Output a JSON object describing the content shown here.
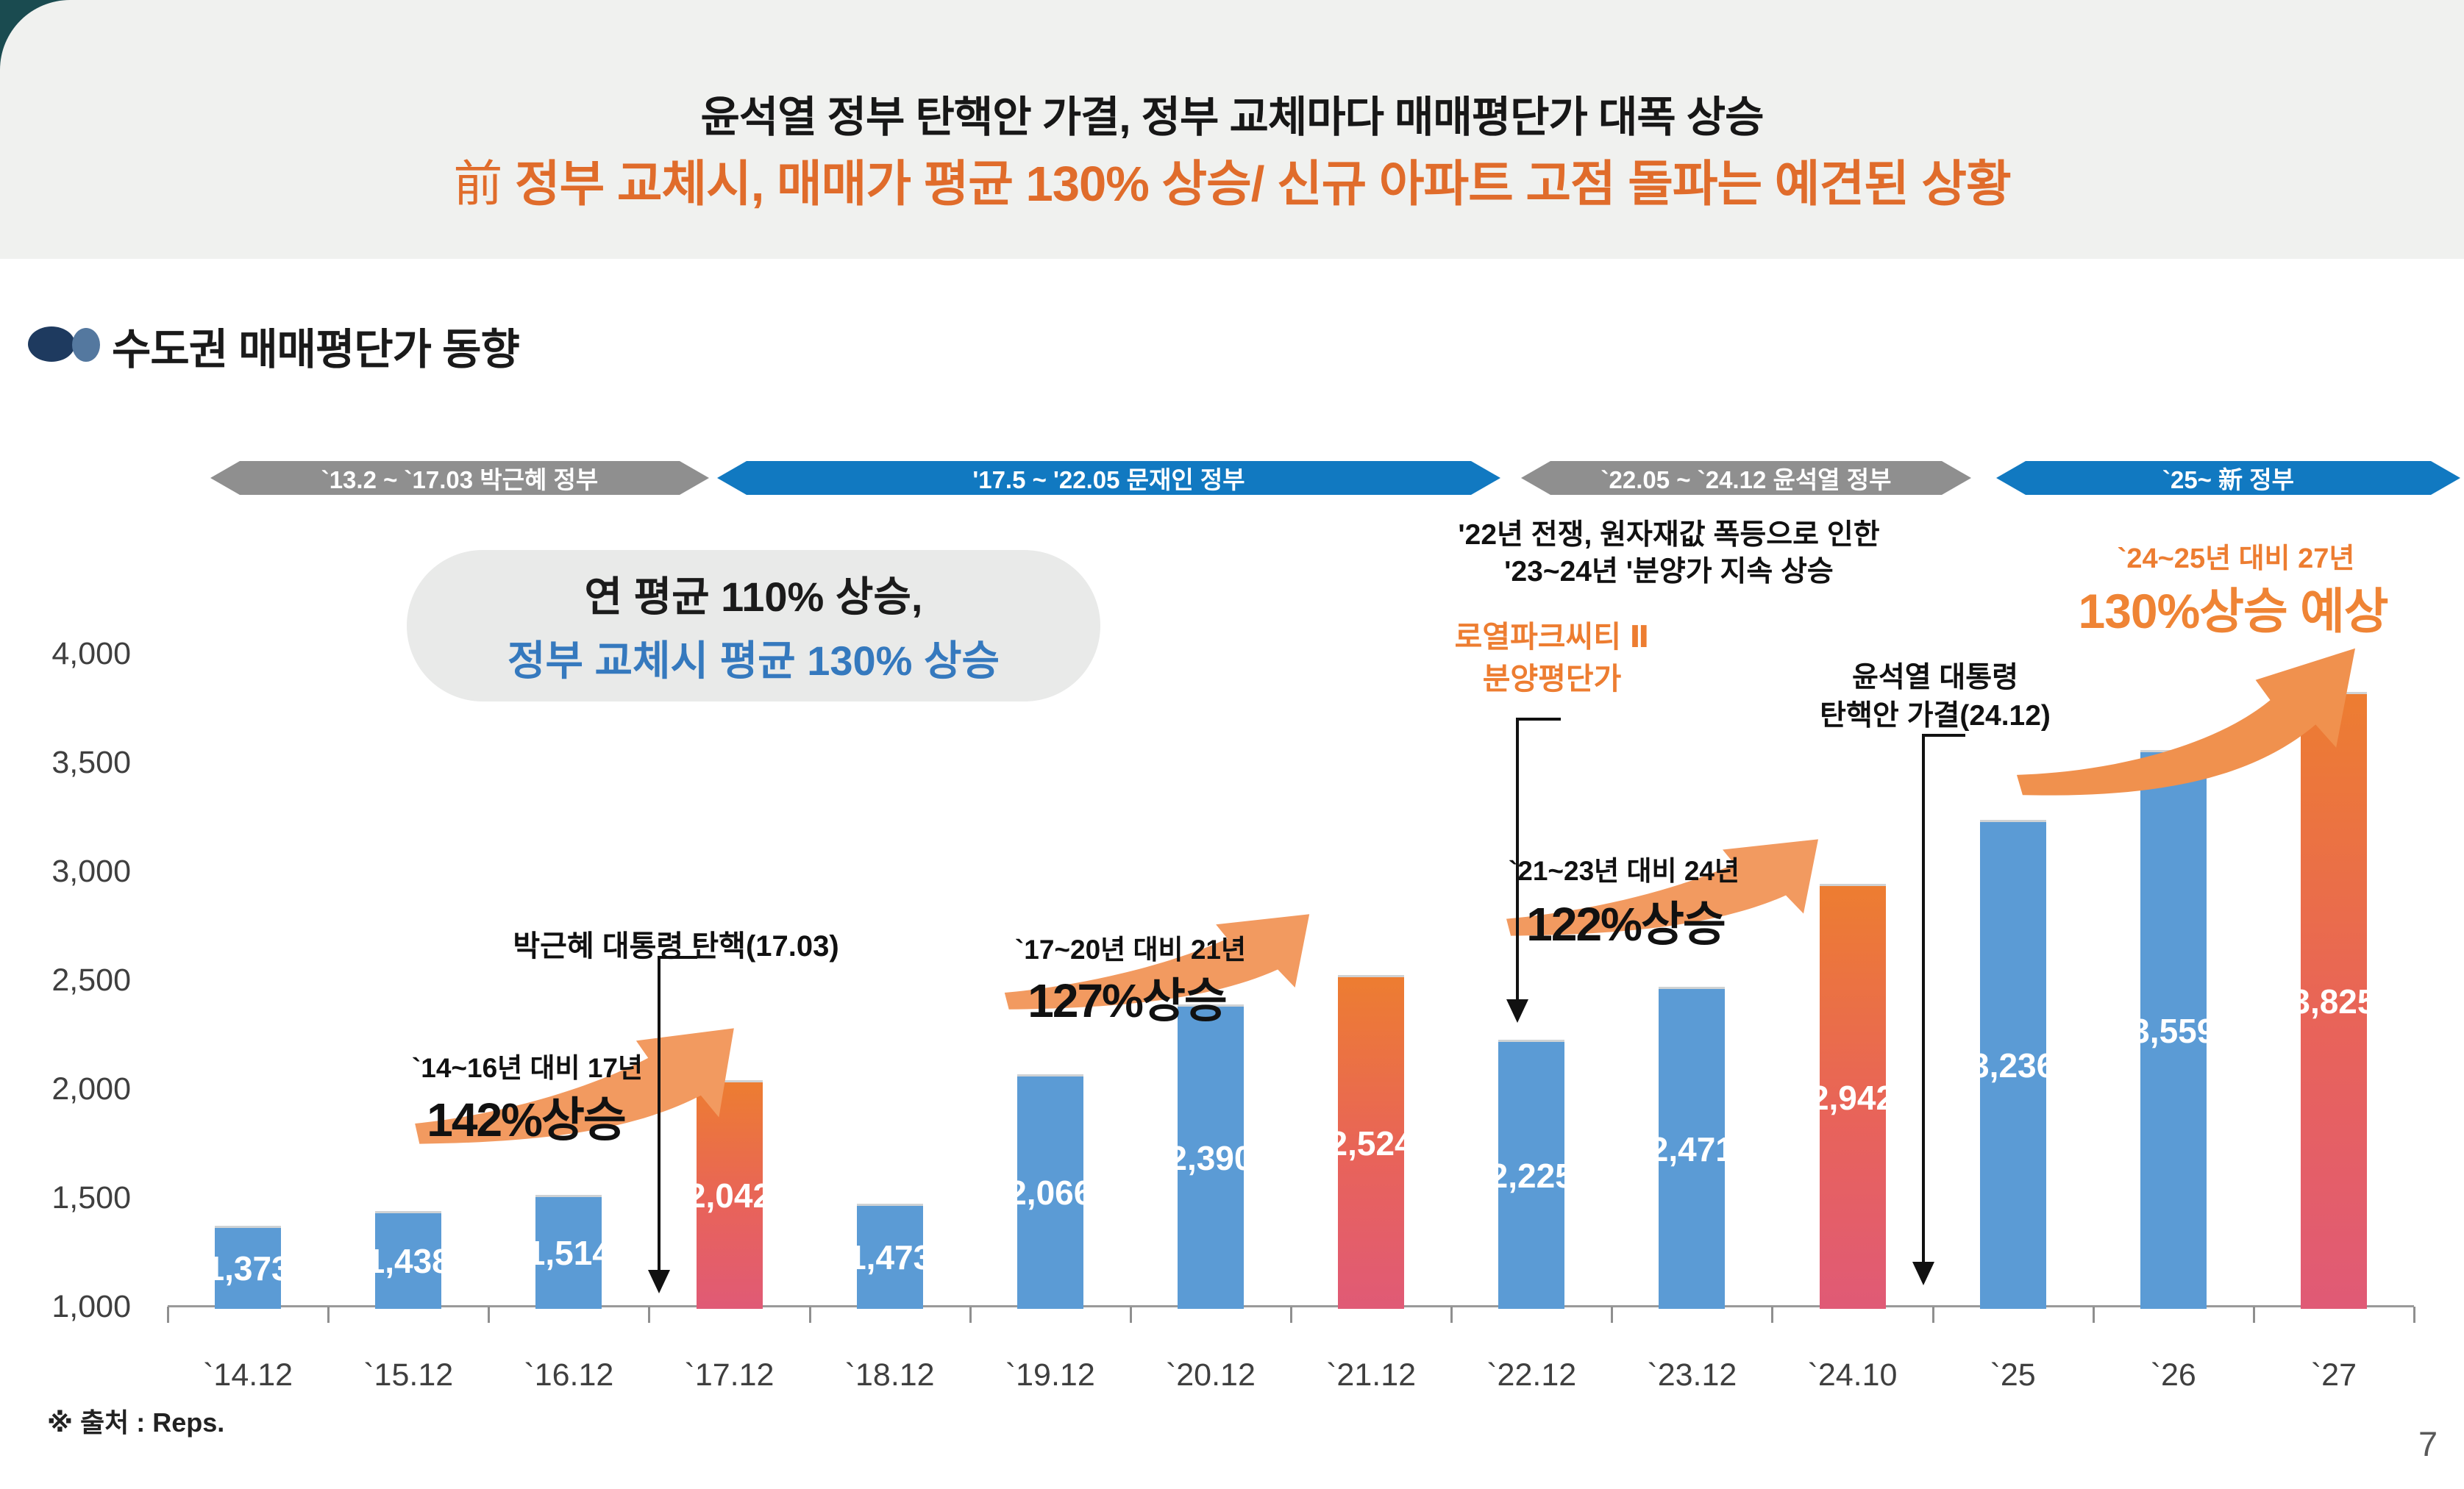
{
  "header": {
    "line1": "윤석열 정부 탄핵안 가결, 정부 교체마다 매매평단가 대폭 상승",
    "line2_hanja": "前",
    "line2_rest": " 정부 교체시, 매매가 평균 130% 상승/ 신규 아파트 고점 돌파는 예견된 상황"
  },
  "section": {
    "title": "수도권 매매평단가 동향"
  },
  "bands": [
    {
      "label": "`13.2 ~ `17.03 박근혜 정부",
      "style": "gray"
    },
    {
      "label": "'17.5 ~ '22.05 문재인 정부",
      "style": "blue"
    },
    {
      "label": "`22.05 ~ `24.12 윤석열 정부",
      "style": "gray"
    },
    {
      "label": "`25~ 新 정부",
      "style": "blue"
    }
  ],
  "callout": {
    "line1": "연 평균 110% 상승,",
    "line2": "정부 교체시 평균 130% 상승"
  },
  "annotations": {
    "park_impeach": "박근혜 대통령 탄핵(17.03)",
    "rise142": {
      "caption": "`14~16년 대비 17년",
      "value": "142%상승"
    },
    "rise127": {
      "caption": "`17~20년 대비 21년",
      "value": "127%상승"
    },
    "rise122": {
      "caption": "`21~23년 대비 24년",
      "value": "122%상승"
    },
    "war": {
      "line1": "'22년 전쟁, 원자재값 폭등으로 인한",
      "line2": "'23~24년 '분양가 지속 상승"
    },
    "royal": {
      "line1": "로열파크씨티 Ⅱ",
      "line2": "분양평단가"
    },
    "yoon": {
      "line1": "윤석열 대통령",
      "line2": "탄핵안 가결(24.12)"
    },
    "forecast": {
      "caption": "`24~25년 대비 27년",
      "value": "130%상승 예상"
    }
  },
  "footer": {
    "source": "※ 출처 : Reps.",
    "page": "7"
  },
  "colors": {
    "band_gray": "#8F8F8F",
    "band_blue": "#1179C1",
    "bar_blue": "#5B9BD5",
    "bar_gradient_top": "#ED7D31",
    "bar_gradient_mid": "#E8635A",
    "bar_gradient_bottom": "#E05A76",
    "accent_orange": "#E06C2B",
    "callout_blue": "#3579BE"
  },
  "chart_data": {
    "type": "bar",
    "title": "수도권 매매평단가 동향",
    "xlabel": "",
    "ylabel": "",
    "grid": false,
    "legend": false,
    "ylim": [
      1000,
      4000
    ],
    "y_ticks": [
      {
        "value": 4000,
        "label": "4,000"
      },
      {
        "value": 3500,
        "label": "3,500"
      },
      {
        "value": 3000,
        "label": "3,000"
      },
      {
        "value": 2500,
        "label": "2,500"
      },
      {
        "value": 2000,
        "label": "2,000"
      },
      {
        "value": 1500,
        "label": "1,500"
      },
      {
        "value": 1000,
        "label": "1,000"
      }
    ],
    "categories": [
      "`14.12",
      "`15.12",
      "`16.12",
      "`17.12",
      "`18.12",
      "`19.12",
      "`20.12",
      "`21.12",
      "`22.12",
      "`23.12",
      "`24.10",
      "`25",
      "`26",
      "`27"
    ],
    "values": [
      1373,
      1438,
      1514,
      2042,
      1473,
      2066,
      2390,
      2524,
      2225,
      2471,
      2942,
      3236,
      3559,
      3825
    ],
    "value_labels": [
      "1,373",
      "1,438",
      "1,514",
      "2,042",
      "1,473",
      "2,066",
      "2,390",
      "2,524",
      "2,225",
      "2,471",
      "2,942",
      "3,236",
      "3,559",
      "3,825"
    ],
    "bar_styles": [
      "b",
      "b",
      "b",
      "g",
      "b",
      "b",
      "b",
      "g",
      "b",
      "b",
      "g",
      "b",
      "b",
      "g"
    ]
  }
}
